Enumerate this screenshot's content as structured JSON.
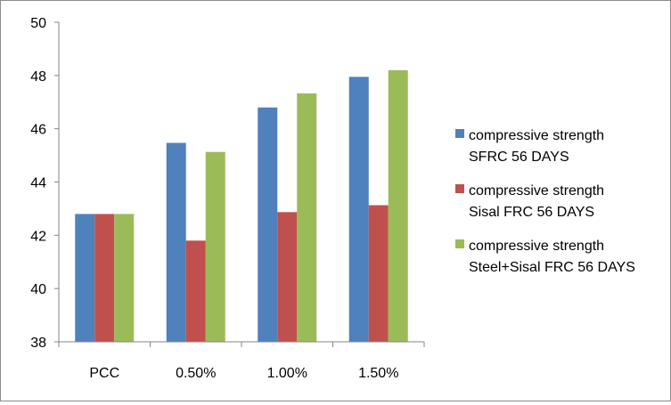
{
  "chart_data": {
    "type": "bar",
    "title": "",
    "xlabel": "",
    "ylabel": "",
    "categories": [
      "PCC",
      "0.50%",
      "1.00%",
      "1.50%"
    ],
    "ylim": [
      38,
      50
    ],
    "yticks": [
      38,
      40,
      42,
      44,
      46,
      48,
      50
    ],
    "ytick_labels": [
      "38",
      "40",
      "42",
      "44",
      "46",
      "48",
      "50"
    ],
    "grid": false,
    "legend_position": "right",
    "series": [
      {
        "name": "compressive strength SFRC 56 DAYS",
        "name_lines": [
          "compressive strength",
          "SFRC 56 DAYS"
        ],
        "color": "#4f81bd",
        "values": [
          42.8,
          45.47,
          46.8,
          47.95
        ]
      },
      {
        "name": "compressive strength Sisal FRC 56 DAYS",
        "name_lines": [
          "compressive strength",
          "Sisal FRC 56 DAYS"
        ],
        "color": "#c0504d",
        "values": [
          42.8,
          41.8,
          42.87,
          43.13
        ]
      },
      {
        "name": "compressive strength Steel+Sisal FRC 56 DAYS",
        "name_lines": [
          "compressive strength",
          "Steel+Sisal FRC 56 DAYS"
        ],
        "color": "#9bbb59",
        "values": [
          42.8,
          45.13,
          47.33,
          48.2
        ]
      }
    ]
  }
}
